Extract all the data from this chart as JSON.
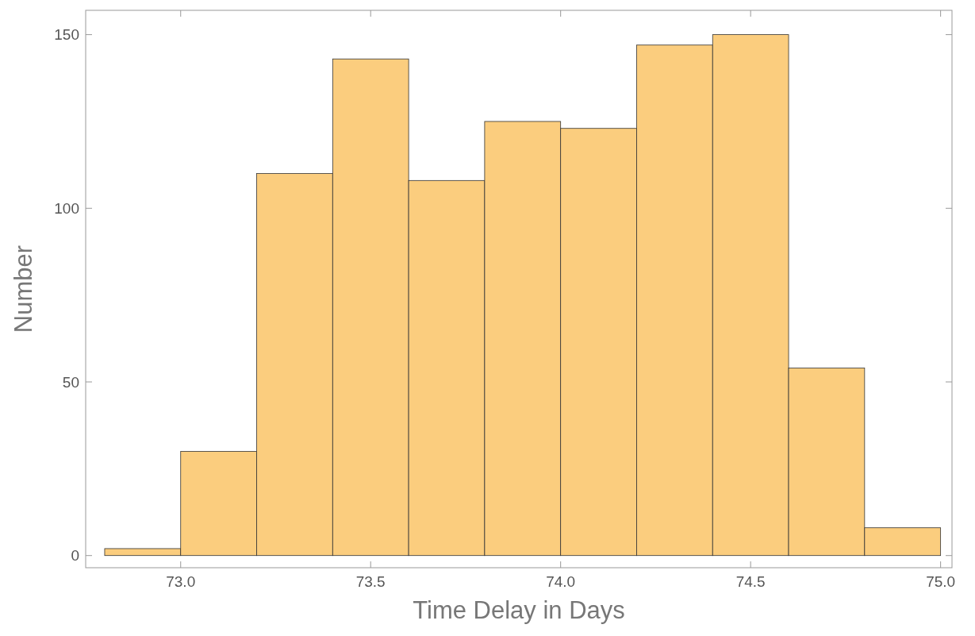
{
  "chart_data": {
    "type": "histogram",
    "xlabel": "Time Delay in Days",
    "ylabel": "Number",
    "bins": [
      72.8,
      73.0,
      73.2,
      73.4,
      73.6,
      73.8,
      74.0,
      74.2,
      74.4,
      74.6,
      74.8,
      75.0
    ],
    "values": [
      2,
      30,
      110,
      143,
      108,
      125,
      123,
      147,
      150,
      54,
      8
    ],
    "color": "#fbcd7e",
    "xlim": [
      72.75,
      75.03
    ],
    "ylim": [
      -3.5,
      157
    ],
    "xticks": [
      {
        "value": 73,
        "label": "73.0"
      },
      {
        "value": 73.5,
        "label": "73.5"
      },
      {
        "value": 74,
        "label": "74.0"
      },
      {
        "value": 74.5,
        "label": "74.5"
      },
      {
        "value": 75,
        "label": "75.0"
      }
    ],
    "yticks": [
      0,
      50,
      100,
      150
    ],
    "grid": false
  }
}
